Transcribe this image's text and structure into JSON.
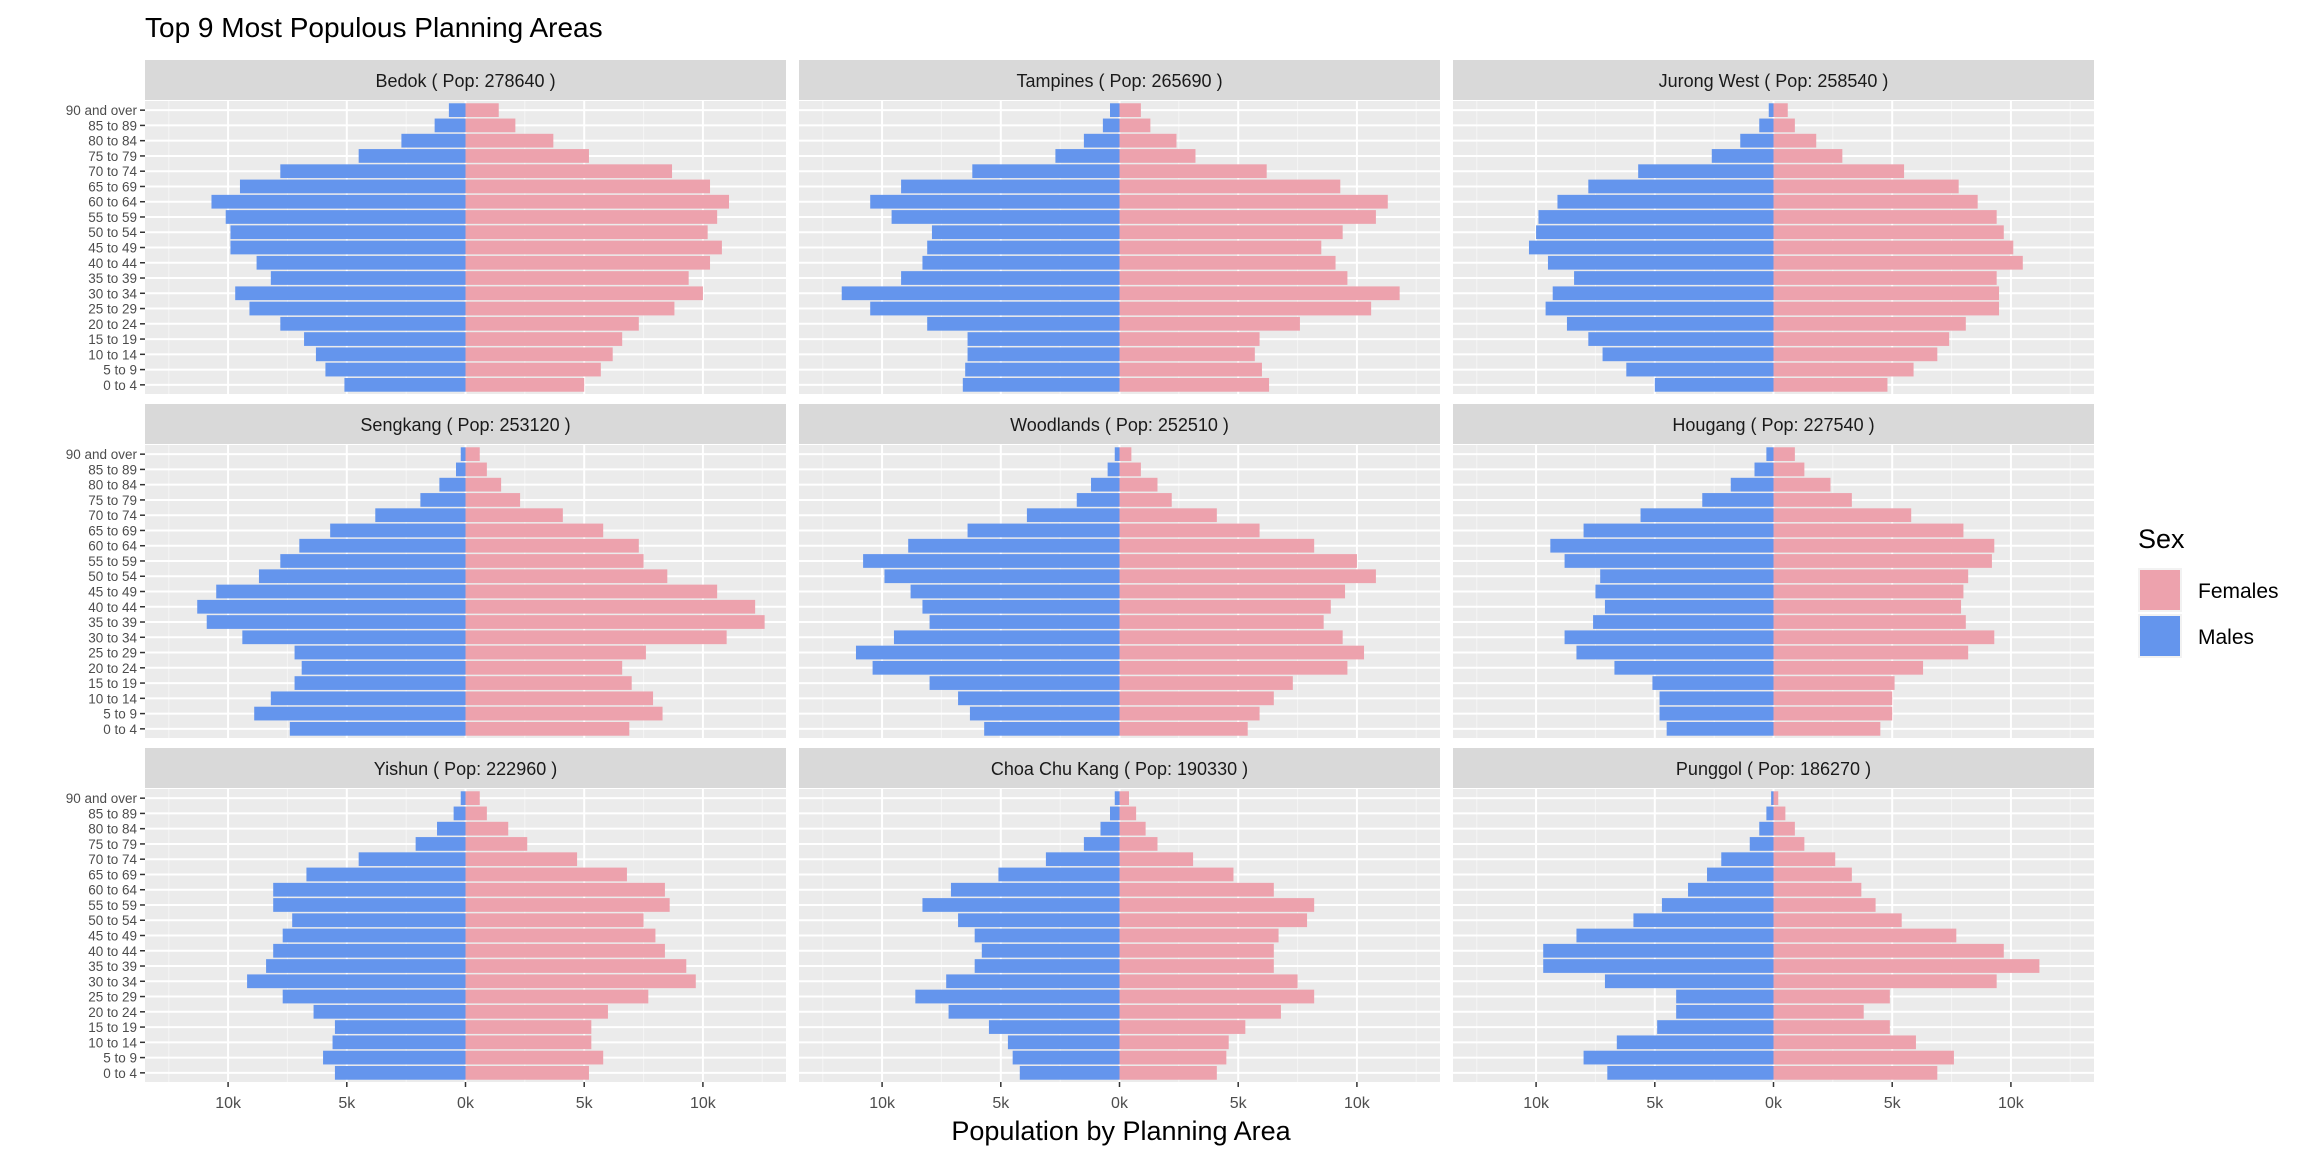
{
  "chart_data": {
    "type": "bar",
    "subtype": "population-pyramid-facets",
    "title": "Top 9 Most Populous Planning Areas",
    "xlabel": "Population by Planning Area",
    "ylabel": "",
    "xlim": [
      -13500,
      13500
    ],
    "x_ticks": [
      -10000,
      -5000,
      0,
      5000,
      10000
    ],
    "x_tick_labels": [
      "10k",
      "5k",
      "0k",
      "5k",
      "10k"
    ],
    "categories": [
      "0 to 4",
      "5 to 9",
      "10 to 14",
      "15 to 19",
      "20 to 24",
      "25 to 29",
      "30 to 34",
      "35 to 39",
      "40 to 44",
      "45 to 49",
      "50 to 54",
      "55 to 59",
      "60 to 64",
      "65 to 69",
      "70 to 74",
      "75 to 79",
      "80 to 84",
      "85 to 89",
      "90 and over"
    ],
    "grid": true,
    "legend": {
      "title": "Sex",
      "position": "right",
      "entries": [
        {
          "name": "Females",
          "color": "#EDA2AD"
        },
        {
          "name": "Males",
          "color": "#6495ED"
        }
      ]
    },
    "panels": [
      {
        "strip": "Bedok ( Pop: 278640 )",
        "males": [
          5100,
          5900,
          6300,
          6800,
          7800,
          9100,
          9700,
          8200,
          8800,
          9900,
          9900,
          10100,
          10700,
          9500,
          7800,
          4500,
          2700,
          1300,
          700
        ],
        "females": [
          5000,
          5700,
          6200,
          6600,
          7300,
          8800,
          10000,
          9400,
          10300,
          10800,
          10200,
          10600,
          11100,
          10300,
          8700,
          5200,
          3700,
          2100,
          1400
        ]
      },
      {
        "strip": "Tampines ( Pop: 265690 )",
        "males": [
          6600,
          6500,
          6400,
          6400,
          8100,
          10500,
          11700,
          9200,
          8300,
          8100,
          7900,
          9600,
          10500,
          9200,
          6200,
          2700,
          1500,
          700,
          400
        ],
        "females": [
          6300,
          6000,
          5700,
          5900,
          7600,
          10600,
          11800,
          9600,
          9100,
          8500,
          9400,
          10800,
          11300,
          9300,
          6200,
          3200,
          2400,
          1300,
          900
        ]
      },
      {
        "strip": "Jurong West ( Pop: 258540 )",
        "males": [
          5000,
          6200,
          7200,
          7800,
          8700,
          9600,
          9300,
          8400,
          9500,
          10300,
          10000,
          9900,
          9100,
          7800,
          5700,
          2600,
          1400,
          600,
          200
        ],
        "females": [
          4800,
          5900,
          6900,
          7400,
          8100,
          9500,
          9500,
          9400,
          10500,
          10100,
          9700,
          9400,
          8600,
          7800,
          5500,
          2900,
          1800,
          900,
          600
        ]
      },
      {
        "strip": "Sengkang ( Pop: 253120 )",
        "males": [
          7400,
          8900,
          8200,
          7200,
          6900,
          7200,
          9400,
          10900,
          11300,
          10500,
          8700,
          7800,
          7000,
          5700,
          3800,
          1900,
          1100,
          400,
          200
        ],
        "females": [
          6900,
          8300,
          7900,
          7000,
          6600,
          7600,
          11000,
          12600,
          12200,
          10600,
          8500,
          7500,
          7300,
          5800,
          4100,
          2300,
          1500,
          900,
          600
        ]
      },
      {
        "strip": "Woodlands ( Pop: 252510 )",
        "males": [
          5700,
          6300,
          6800,
          8000,
          10400,
          11100,
          9500,
          8000,
          8300,
          8800,
          9900,
          10800,
          8900,
          6400,
          3900,
          1800,
          1200,
          500,
          200
        ],
        "females": [
          5400,
          5900,
          6500,
          7300,
          9600,
          10300,
          9400,
          8600,
          8900,
          9500,
          10800,
          10000,
          8200,
          5900,
          4100,
          2200,
          1600,
          900,
          500
        ]
      },
      {
        "strip": "Hougang ( Pop: 227540 )",
        "males": [
          4500,
          4800,
          4800,
          5100,
          6700,
          8300,
          8800,
          7600,
          7100,
          7500,
          7300,
          8800,
          9400,
          8000,
          5600,
          3000,
          1800,
          800,
          300
        ],
        "females": [
          4500,
          5000,
          5000,
          5100,
          6300,
          8200,
          9300,
          8100,
          7900,
          8000,
          8200,
          9200,
          9300,
          8000,
          5800,
          3300,
          2400,
          1300,
          900
        ]
      },
      {
        "strip": "Yishun ( Pop: 222960 )",
        "males": [
          5500,
          6000,
          5600,
          5500,
          6400,
          7700,
          9200,
          8400,
          8100,
          7700,
          7300,
          8100,
          8100,
          6700,
          4500,
          2100,
          1200,
          500,
          200
        ],
        "females": [
          5200,
          5800,
          5300,
          5300,
          6000,
          7700,
          9700,
          9300,
          8400,
          8000,
          7500,
          8600,
          8400,
          6800,
          4700,
          2600,
          1800,
          900,
          600
        ]
      },
      {
        "strip": "Choa Chu Kang ( Pop: 190330 )",
        "males": [
          4200,
          4500,
          4700,
          5500,
          7200,
          8600,
          7300,
          6100,
          5800,
          6100,
          6800,
          8300,
          7100,
          5100,
          3100,
          1500,
          800,
          400,
          200
        ],
        "females": [
          4100,
          4500,
          4600,
          5300,
          6800,
          8200,
          7500,
          6500,
          6500,
          6700,
          7900,
          8200,
          6500,
          4800,
          3100,
          1600,
          1100,
          700,
          400
        ]
      },
      {
        "strip": "Punggol ( Pop: 186270 )",
        "males": [
          7000,
          8000,
          6600,
          4900,
          4100,
          4100,
          7100,
          9700,
          9700,
          8300,
          5900,
          4700,
          3600,
          2800,
          2200,
          1000,
          600,
          300,
          100
        ],
        "females": [
          6900,
          7600,
          6000,
          4900,
          3800,
          4900,
          9400,
          11200,
          9700,
          7700,
          5400,
          4300,
          3700,
          3300,
          2600,
          1300,
          900,
          500,
          200
        ]
      }
    ]
  }
}
